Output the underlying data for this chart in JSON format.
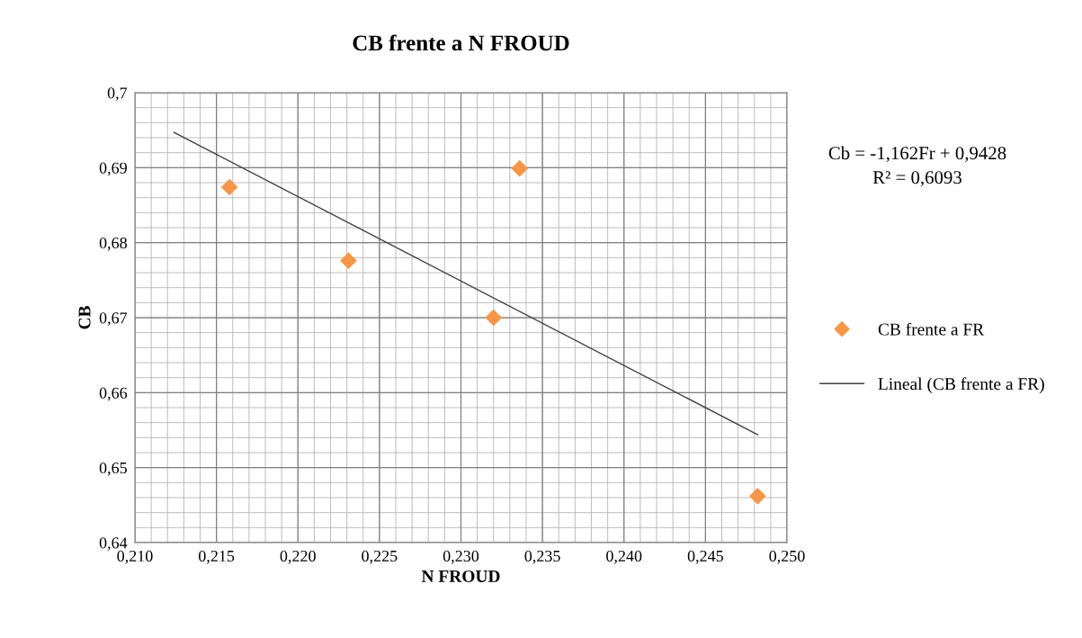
{
  "chart_data": {
    "type": "scatter",
    "title": "CB frente a N FROUD",
    "xlabel": "N FROUD",
    "ylabel": "CB",
    "series": [
      {
        "name": "CB frente a FR",
        "color": "#f79646",
        "marker": "diamond",
        "x": [
          0.2158,
          0.2231,
          0.232,
          0.2336,
          0.2482
        ],
        "values": [
          0.6874,
          0.6776,
          0.67,
          0.6899,
          0.6462
        ]
      },
      {
        "name": "Lineal (CB frente a FR)",
        "type": "line",
        "color": "#404040",
        "marker": "none",
        "line_style": "solid",
        "x": [
          0.2124,
          0.2482
        ],
        "values": [
          0.6947,
          0.6544
        ]
      }
    ],
    "annotations": [
      "Cb = -1,162Fr + 0,9428",
      "R² = 0,6093"
    ],
    "xlim": [
      0.21,
      0.25
    ],
    "xticks": [
      {
        "value": 0.21,
        "label": "0,210"
      },
      {
        "value": 0.215,
        "label": "0,215"
      },
      {
        "value": 0.22,
        "label": "0,220"
      },
      {
        "value": 0.225,
        "label": "0,225"
      },
      {
        "value": 0.23,
        "label": "0,230"
      },
      {
        "value": 0.235,
        "label": "0,235"
      },
      {
        "value": 0.24,
        "label": "0,240"
      },
      {
        "value": 0.245,
        "label": "0,245"
      },
      {
        "value": 0.25,
        "label": "0,250"
      }
    ],
    "ylim": [
      0.64,
      0.7
    ],
    "yticks": [
      {
        "value": 0.64,
        "label": "0,64"
      },
      {
        "value": 0.65,
        "label": "0,65"
      },
      {
        "value": 0.66,
        "label": "0,66"
      },
      {
        "value": 0.67,
        "label": "0,67"
      },
      {
        "value": 0.68,
        "label": "0,68"
      },
      {
        "value": 0.69,
        "label": "0,69"
      },
      {
        "value": 0.7,
        "label": "0,7"
      }
    ],
    "grid": true,
    "legend": "right"
  }
}
